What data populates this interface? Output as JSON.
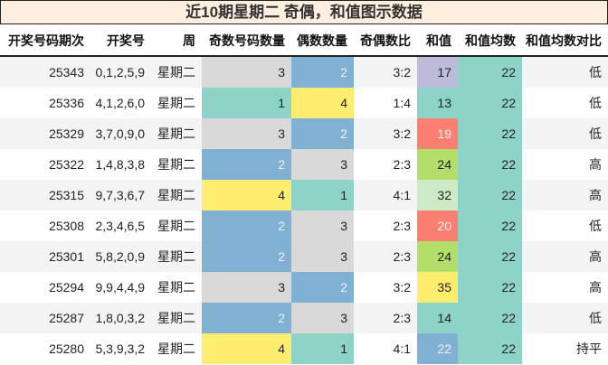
{
  "title": "近10期星期二 奇偶，和值图示数据",
  "columns": [
    "开奖号码期次",
    "开奖号",
    "周",
    "奇数号码数量",
    "偶数数量",
    "奇偶数比",
    "和值",
    "和值均数",
    "和值均数对比"
  ],
  "colors": {
    "gray": "#d9d9d9",
    "blue": "#80b1d3",
    "teal": "#8dd3c7",
    "yellow": "#ffed6f",
    "purple": "#bebada",
    "salmon": "#fb8072",
    "green": "#b3de69",
    "lightgreen": "#ccebc5",
    "title_bg": "#fdeedd"
  },
  "rows": [
    {
      "issue": "25343",
      "numbers": "0,1,2,5,9",
      "week": "星期二",
      "odd": "3",
      "even": "2",
      "ratio": "3:2",
      "sum": "17",
      "avg": "22",
      "compare": "低",
      "odd_color": "gray",
      "even_color": "blue",
      "sum_color": "purple"
    },
    {
      "issue": "25336",
      "numbers": "4,1,2,6,0",
      "week": "星期二",
      "odd": "1",
      "even": "4",
      "ratio": "1:4",
      "sum": "13",
      "avg": "22",
      "compare": "低",
      "odd_color": "teal",
      "even_color": "yellow",
      "sum_color": "teal"
    },
    {
      "issue": "25329",
      "numbers": "3,7,0,9,0",
      "week": "星期二",
      "odd": "3",
      "even": "2",
      "ratio": "3:2",
      "sum": "19",
      "avg": "22",
      "compare": "低",
      "odd_color": "gray",
      "even_color": "blue",
      "sum_color": "salmon"
    },
    {
      "issue": "25322",
      "numbers": "1,4,8,3,8",
      "week": "星期二",
      "odd": "2",
      "even": "3",
      "ratio": "2:3",
      "sum": "24",
      "avg": "22",
      "compare": "高",
      "odd_color": "blue",
      "even_color": "gray",
      "sum_color": "green"
    },
    {
      "issue": "25315",
      "numbers": "9,7,3,6,7",
      "week": "星期二",
      "odd": "4",
      "even": "1",
      "ratio": "4:1",
      "sum": "32",
      "avg": "22",
      "compare": "高",
      "odd_color": "yellow",
      "even_color": "teal",
      "sum_color": "lightgreen"
    },
    {
      "issue": "25308",
      "numbers": "2,3,4,6,5",
      "week": "星期二",
      "odd": "2",
      "even": "3",
      "ratio": "2:3",
      "sum": "20",
      "avg": "22",
      "compare": "低",
      "odd_color": "blue",
      "even_color": "gray",
      "sum_color": "salmon"
    },
    {
      "issue": "25301",
      "numbers": "5,8,2,0,9",
      "week": "星期二",
      "odd": "2",
      "even": "3",
      "ratio": "2:3",
      "sum": "24",
      "avg": "22",
      "compare": "高",
      "odd_color": "blue",
      "even_color": "gray",
      "sum_color": "green"
    },
    {
      "issue": "25294",
      "numbers": "9,9,4,4,9",
      "week": "星期二",
      "odd": "3",
      "even": "2",
      "ratio": "3:2",
      "sum": "35",
      "avg": "22",
      "compare": "高",
      "odd_color": "gray",
      "even_color": "blue",
      "sum_color": "yellow"
    },
    {
      "issue": "25287",
      "numbers": "1,8,0,3,2",
      "week": "星期二",
      "odd": "2",
      "even": "3",
      "ratio": "2:3",
      "sum": "14",
      "avg": "22",
      "compare": "低",
      "odd_color": "blue",
      "even_color": "gray",
      "sum_color": "teal"
    },
    {
      "issue": "25280",
      "numbers": "5,3,9,3,2",
      "week": "星期二",
      "odd": "4",
      "even": "1",
      "ratio": "4:1",
      "sum": "22",
      "avg": "22",
      "compare": "持平",
      "odd_color": "yellow",
      "even_color": "teal",
      "sum_color": "blue"
    }
  ]
}
